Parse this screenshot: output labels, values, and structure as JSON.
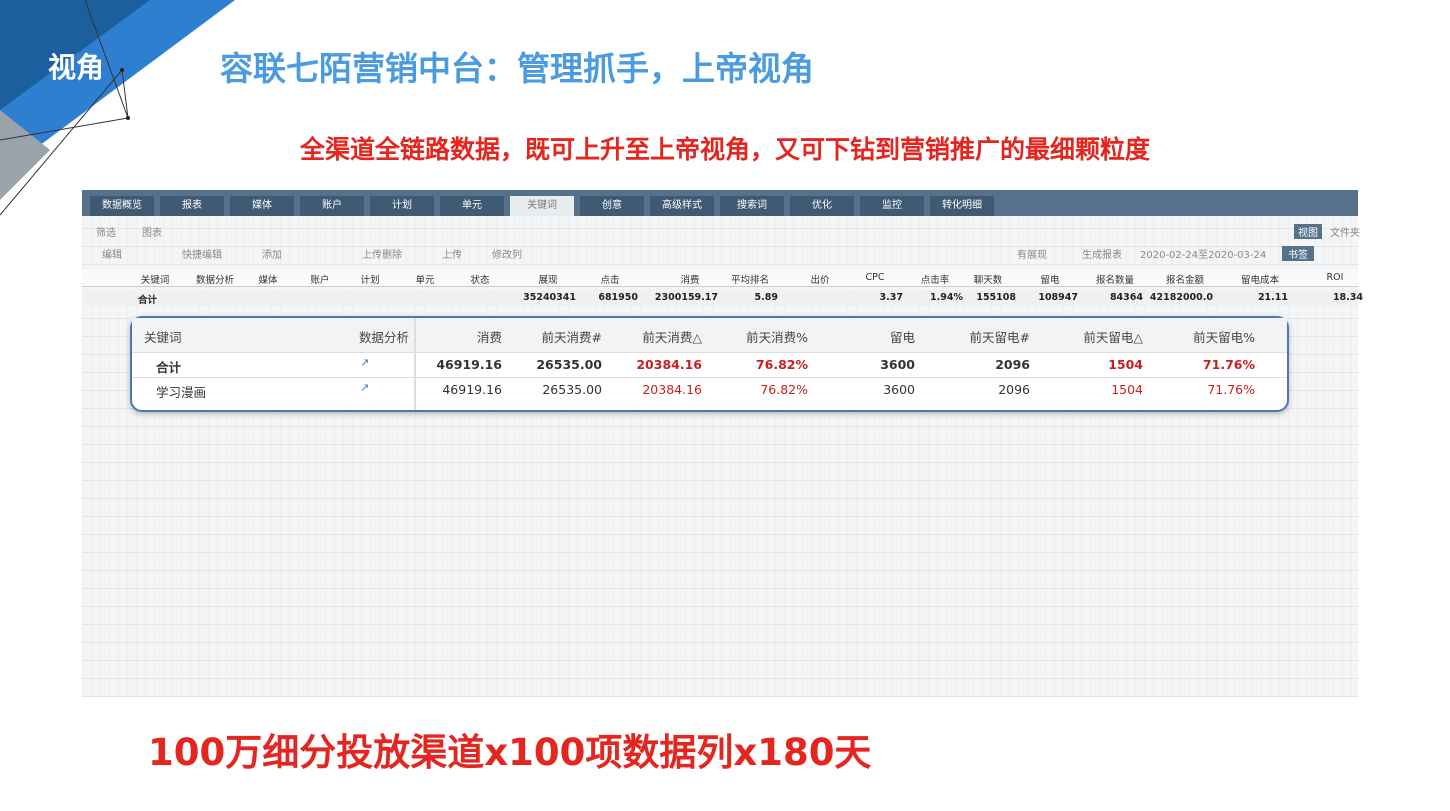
{
  "header": {
    "badge": "视角",
    "title": "容联七陌营销中台：管理抓手，上帝视角",
    "subtitle": "全渠道全链路数据，既可上升至上帝视角，又可下钻到营销推广的最细颗粒度"
  },
  "screenshot": {
    "tabs": [
      "数据概览",
      "报表",
      "媒体",
      "账户",
      "计划",
      "单元",
      "关键词",
      "创意",
      "高级样式",
      "搜索词",
      "优化",
      "监控",
      "转化明细"
    ],
    "toolbar1": [
      "筛选",
      "图表"
    ],
    "toolbar1_right": [
      "视图",
      "文件夹"
    ],
    "toolbar2": [
      "编辑",
      "快捷编辑",
      "添加",
      "上传删除",
      "上传",
      "修改列",
      "有展现",
      "生成报表",
      "2020-02-24至2020-03-24",
      "书签"
    ],
    "columns": [
      "关键词",
      "数据分析",
      "媒体",
      "账户",
      "计划",
      "单元",
      "状态",
      "展现",
      "点击",
      "消费",
      "平均排名",
      "出价",
      "CPC",
      "点击率",
      "聊天数",
      "留电",
      "报名数量",
      "报名金额",
      "留电成本",
      "ROI"
    ],
    "total_row": {
      "label": "合计",
      "cells": [
        null,
        null,
        null,
        null,
        null,
        null,
        null,
        "35240341",
        "681950",
        "2300159.17",
        "5.89",
        null,
        "3.37",
        "1.94%",
        "155108",
        "108947",
        "84364",
        "42182000.0",
        "21.11",
        "18.34"
      ]
    }
  },
  "zoom": {
    "columns": [
      "关键词",
      "数据分析",
      "消费",
      "前天消费#",
      "前天消费△",
      "前天消费%",
      "留电",
      "前天留电#",
      "前天留电△",
      "前天留电%"
    ],
    "rows": [
      [
        "合计",
        null,
        "46919.16",
        "26535.00",
        "20384.16",
        "76.82%",
        "3600",
        "2096",
        "1504",
        "71.76%"
      ],
      [
        "学习漫画",
        null,
        "46919.16",
        "26535.00",
        "20384.16",
        "76.82%",
        "3600",
        "2096",
        "1504",
        "71.76%"
      ]
    ]
  },
  "footer": {
    "text": "100万细分投放渠道x100项数据列x180天"
  }
}
